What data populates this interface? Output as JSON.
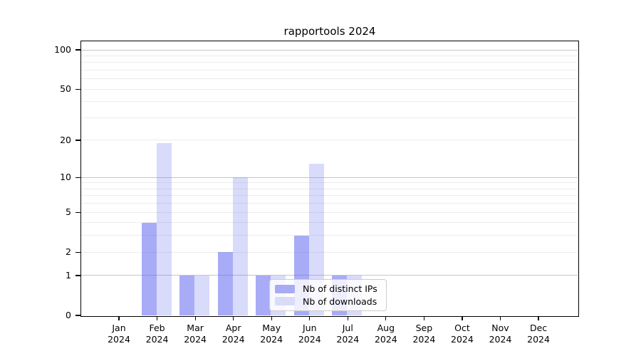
{
  "chart_data": {
    "type": "bar",
    "title": "rapportools 2024",
    "year": "2024",
    "categories": [
      "Jan",
      "Feb",
      "Mar",
      "Apr",
      "May",
      "Jun",
      "Jul",
      "Aug",
      "Sep",
      "Oct",
      "Nov",
      "Dec"
    ],
    "series": [
      {
        "name": "Nb of distinct IPs",
        "color": "#5a62ee",
        "fill_opacity": 0.53,
        "apparent_color": "#a8abf4",
        "values": [
          0,
          4,
          1,
          2,
          1,
          3,
          1,
          0,
          0,
          0,
          0,
          0
        ]
      },
      {
        "name": "Nb of downloads",
        "color": "#5a62ee",
        "fill_opacity": 0.23,
        "apparent_color": "#d9dbf8",
        "values": [
          0,
          19,
          1,
          10,
          1,
          13,
          1,
          0,
          0,
          0,
          0,
          0
        ]
      }
    ],
    "yscale": "symlog (log1p)",
    "ylim": [
      0,
      115
    ],
    "ytick_values": [
      0,
      1,
      2,
      5,
      10,
      20,
      50,
      100
    ],
    "major_gridlines": [
      1,
      10,
      100
    ],
    "minor_gridlines": [
      2,
      3,
      4,
      5,
      6,
      7,
      8,
      9,
      20,
      30,
      40,
      50,
      60,
      70,
      80,
      90
    ],
    "grid": "horizontal only",
    "gridline_major_color": "#c6c6c6",
    "gridline_minor_color": "#ececec",
    "axis_color": "#000000",
    "legend": {
      "position": "inside lower center-right",
      "background": "#ffffff",
      "border_color": "#cccccc"
    }
  }
}
